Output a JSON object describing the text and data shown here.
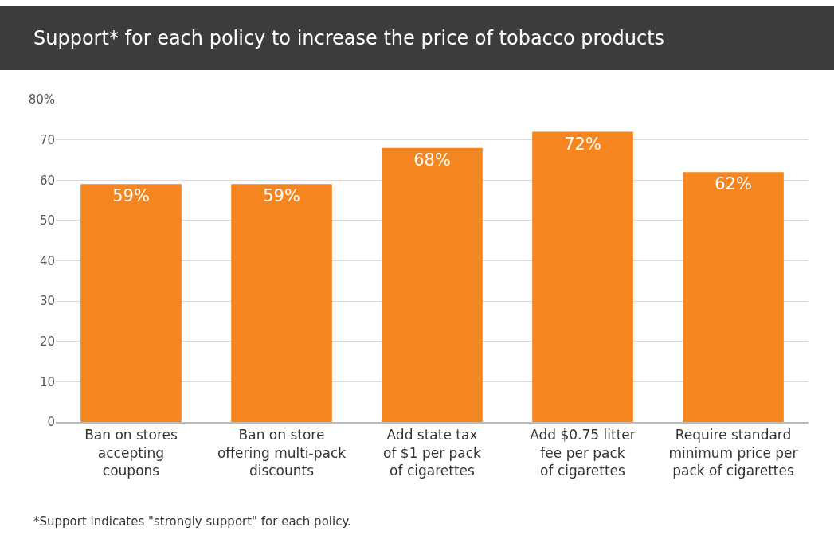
{
  "chart_data": {
    "type": "bar",
    "title": "Support* for each policy to increase the price of tobacco products",
    "categories": [
      "Ban on stores\naccepting\ncoupons",
      "Ban on store\noffering multi-pack\ndiscounts",
      "Add state tax\nof $1 per pack\nof cigarettes",
      "Add $0.75 litter\nfee per pack\nof cigarettes",
      "Require standard\nminimum price per\npack of cigarettes"
    ],
    "values": [
      59,
      59,
      68,
      72,
      62
    ],
    "value_labels": [
      "59%",
      "59%",
      "68%",
      "72%",
      "62%"
    ],
    "color": "#f5861f",
    "ylim": [
      0,
      80
    ],
    "yticks": [
      0,
      10,
      20,
      30,
      40,
      50,
      60,
      70,
      {
        "value": 80,
        "label": "80%"
      }
    ],
    "grid": "y",
    "legend": false,
    "annotations": [
      "*Support indicates \"strongly support\" for each policy."
    ]
  }
}
